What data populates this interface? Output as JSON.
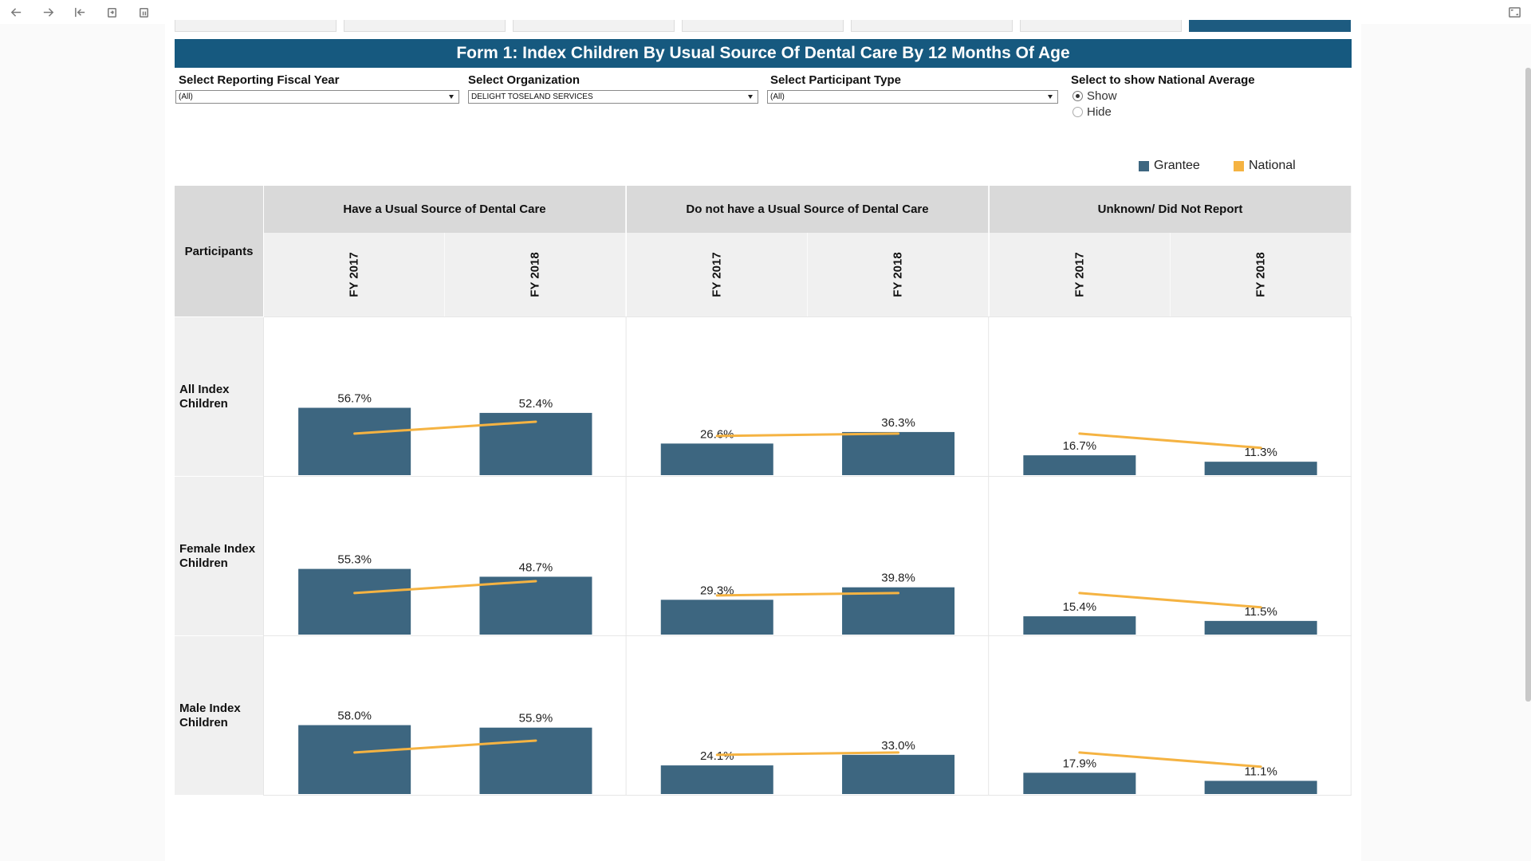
{
  "toolbar": {
    "icons": [
      "arrow-left-icon",
      "arrow-right-icon",
      "skip-start-icon",
      "refresh-icon",
      "pause-icon",
      "fullscreen-icon"
    ]
  },
  "title": "Form 1: Index Children By Usual Source Of Dental Care By 12 Months Of Age",
  "filters": {
    "fiscal_year": {
      "label": "Select Reporting Fiscal Year",
      "value": "(All)"
    },
    "organization": {
      "label": "Select Organization",
      "value": "DELIGHT TOSELAND SERVICES"
    },
    "participant_type": {
      "label": "Select Participant Type",
      "value": "(All)"
    },
    "national_average": {
      "label": "Select to show National Average",
      "options": [
        "Show",
        "Hide"
      ],
      "selected": "Show"
    }
  },
  "legend": {
    "grantee": "Grantee",
    "national": "National"
  },
  "colors": {
    "grantee": "#3d6680",
    "national": "#f5b342",
    "header_bar": "#16597f"
  },
  "grid": {
    "row_header_label": "Participants"
  },
  "chart_data": {
    "type": "bar",
    "groups": [
      "Have a Usual Source of Dental Care",
      "Do not have a Usual Source of Dental Care",
      "Unknown/ Did Not Report"
    ],
    "years": [
      "FY 2017",
      "FY 2018"
    ],
    "rows": [
      "All Index Children",
      "Female Index Children",
      "Male Index Children"
    ],
    "row_lines": [
      [
        "All Index",
        "Children"
      ],
      [
        "Female Index",
        "Children"
      ],
      [
        "Male Index",
        "Children"
      ]
    ],
    "series": [
      {
        "name": "Grantee",
        "type": "bar",
        "values": [
          [
            [
              56.7,
              52.4
            ],
            [
              26.6,
              36.3
            ],
            [
              16.7,
              11.3
            ]
          ],
          [
            [
              55.3,
              48.7
            ],
            [
              29.3,
              39.8
            ],
            [
              15.4,
              11.5
            ]
          ],
          [
            [
              58.0,
              55.9
            ],
            [
              24.1,
              33.0
            ],
            [
              17.9,
              11.1
            ]
          ]
        ]
      },
      {
        "name": "National",
        "type": "line",
        "values": [
          [
            [
              35,
              45
            ],
            [
              33,
              35
            ],
            [
              35,
              23
            ]
          ],
          [
            [
              35,
              45
            ],
            [
              33,
              35
            ],
            [
              35,
              23
            ]
          ],
          [
            [
              35,
              45
            ],
            [
              33,
              35
            ],
            [
              35,
              23
            ]
          ]
        ]
      }
    ],
    "value_labels": [
      [
        [
          "56.7%",
          "52.4%"
        ],
        [
          "26.6%",
          "36.3%"
        ],
        [
          "16.7%",
          "11.3%"
        ]
      ],
      [
        [
          "55.3%",
          "48.7%"
        ],
        [
          "29.3%",
          "39.8%"
        ],
        [
          "15.4%",
          "11.5%"
        ]
      ],
      [
        [
          "58.0%",
          "55.9%"
        ],
        [
          "24.1%",
          "33.0%"
        ],
        [
          "17.9%",
          "11.1%"
        ]
      ]
    ],
    "ylim": [
      0,
      100
    ],
    "legend_position": "top-right"
  }
}
